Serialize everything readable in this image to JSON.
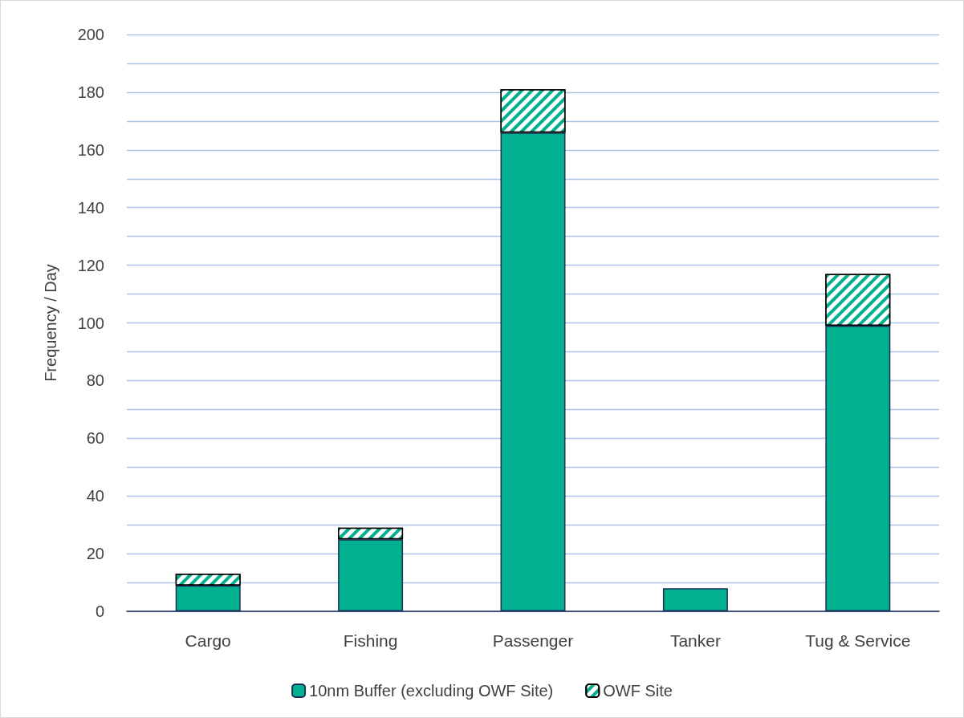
{
  "chart_data": {
    "type": "bar",
    "stacked": true,
    "ylabel": "Frequency / Day",
    "categories": [
      "Cargo",
      "Fishing",
      "Passenger",
      "Tanker",
      "Tug & Service"
    ],
    "series": [
      {
        "name": "10nm Buffer (excluding OWF Site)",
        "color": "#00b08f",
        "values": [
          9,
          25,
          166,
          8,
          99
        ]
      },
      {
        "name": "OWF Site",
        "color": "#00b08f",
        "values": [
          4,
          4,
          15,
          0,
          18
        ]
      }
    ],
    "ylim": [
      0,
      200
    ],
    "yticks": [
      0,
      {
        "value": 10,
        "label": null
      },
      20,
      {
        "value": 30,
        "label": null
      },
      40,
      {
        "value": 50,
        "label": null
      },
      60,
      {
        "value": 70,
        "label": null
      },
      80,
      {
        "value": 90,
        "label": null
      },
      100,
      {
        "value": 110,
        "label": null
      },
      120,
      {
        "value": 130,
        "label": null
      },
      140,
      {
        "value": 150,
        "label": null
      },
      160,
      {
        "value": 170,
        "label": null
      },
      180,
      {
        "value": 190,
        "label": null
      },
      200
    ],
    "grid": "y",
    "legend": "bottom"
  }
}
